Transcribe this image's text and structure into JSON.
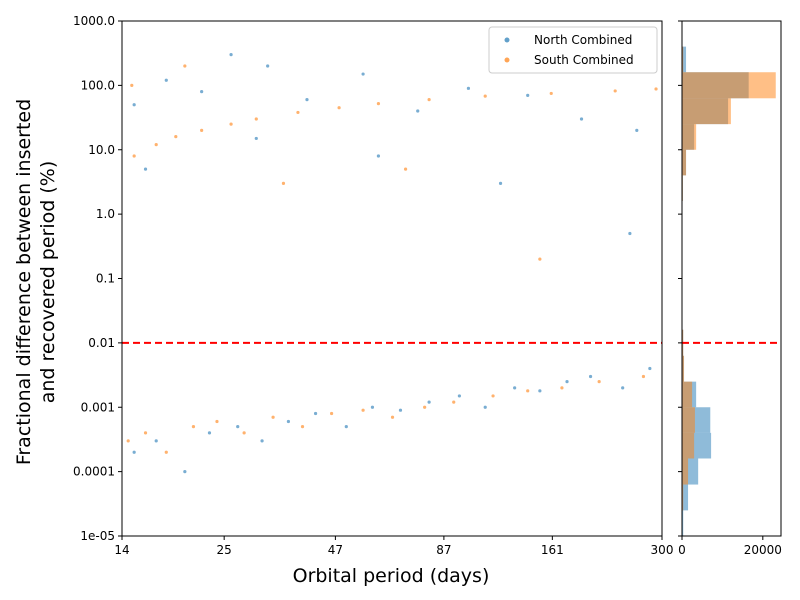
{
  "chart_data": [
    {
      "type": "scatter",
      "xlabel": "Orbital period (days)",
      "ylabel": [
        "Fractional difference between inserted",
        "and recovered period (%)"
      ],
      "xscale": "log",
      "yscale": "log",
      "xlim": [
        14,
        300
      ],
      "xticks": [
        14,
        25,
        47,
        87,
        161,
        300
      ],
      "ylim": [
        1e-05,
        1000
      ],
      "yticks": [
        {
          "value": 1e-05,
          "label": "1e-05"
        },
        0.0001,
        0.001,
        0.01,
        0.1,
        {
          "value": 1,
          "label": "1.0"
        },
        {
          "value": 10,
          "label": "10.0"
        },
        {
          "value": 100,
          "label": "100.0"
        },
        {
          "value": 1000,
          "label": "1000.0"
        }
      ],
      "hline": {
        "value": 0.01,
        "color": "#ff0000",
        "style": "dashed"
      },
      "legend": "upper right",
      "series": [
        {
          "name": "North Combined",
          "color": "#1f77b4",
          "x": [
            15,
            17,
            20,
            23,
            27,
            31,
            36,
            42,
            50,
            58,
            68,
            80,
            95,
            110,
            130,
            150,
            175,
            200,
            240,
            280,
            15,
            18,
            22,
            26,
            32,
            40,
            55,
            75,
            100,
            140,
            190,
            260,
            16,
            30,
            60,
            120,
            250
          ],
          "values": [
            0.0002,
            0.0003,
            0.0001,
            0.0004,
            0.0005,
            0.0003,
            0.0006,
            0.0008,
            0.0005,
            0.001,
            0.0009,
            0.0012,
            0.0015,
            0.001,
            0.002,
            0.0018,
            0.0025,
            0.003,
            0.002,
            0.004,
            50,
            120,
            80,
            300,
            200,
            60,
            150,
            40,
            90,
            70,
            30,
            20,
            5,
            15,
            8,
            3,
            0.5
          ]
        },
        {
          "name": "South Combined",
          "color": "#ff7f0e",
          "x": [
            14.5,
            16,
            18,
            21,
            24,
            28,
            33,
            39,
            46,
            55,
            65,
            78,
            92,
            115,
            140,
            170,
            210,
            270,
            15,
            17,
            19,
            22,
            26,
            30,
            38,
            48,
            60,
            80,
            110,
            160,
            230,
            290,
            14.8,
            20,
            35,
            70,
            150
          ],
          "values": [
            0.0003,
            0.0004,
            0.0002,
            0.0005,
            0.0006,
            0.0004,
            0.0007,
            0.0005,
            0.0008,
            0.0009,
            0.0007,
            0.001,
            0.0012,
            0.0015,
            0.0018,
            0.002,
            0.0025,
            0.003,
            8,
            12,
            16,
            20,
            25,
            30,
            38,
            45,
            52,
            60,
            68,
            75,
            82,
            88,
            100,
            200,
            3,
            5,
            0.2
          ]
        }
      ]
    },
    {
      "type": "histogram",
      "orientation": "horizontal",
      "bins": [
        1e-05,
        2.5e-05,
        6.3e-05,
        0.00016,
        0.0004,
        0.001,
        0.0025,
        0.0063,
        0.016,
        0.04,
        0.1,
        0.25,
        0.63,
        1.6,
        4,
        10,
        25,
        63,
        160,
        400,
        1000
      ],
      "xlim": [
        0,
        24500
      ],
      "xticks": [
        0,
        20000
      ],
      "series": [
        {
          "name": "North Combined",
          "color": "#1f77b4",
          "values": [
            300,
            1500,
            4000,
            7200,
            7000,
            3500,
            500,
            300,
            50,
            30,
            30,
            40,
            60,
            200,
            1000,
            3000,
            11400,
            16500,
            1000,
            50
          ]
        },
        {
          "name": "South Combined",
          "color": "#ff7f0e",
          "values": [
            50,
            300,
            1500,
            3000,
            3200,
            2500,
            500,
            300,
            50,
            30,
            30,
            40,
            60,
            200,
            1000,
            3500,
            12100,
            23200,
            300,
            20
          ]
        }
      ]
    }
  ]
}
